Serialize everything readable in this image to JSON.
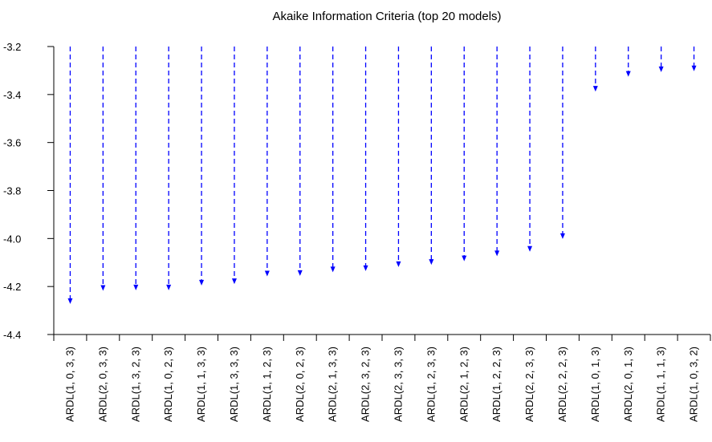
{
  "chart_data": {
    "type": "lollipop-arrow",
    "title": "Akaike Information Criteria (top 20 models)",
    "xlabel": "",
    "ylabel": "",
    "ylim": [
      -4.4,
      -3.2
    ],
    "yticks": [
      -3.2,
      -3.4,
      -3.6,
      -3.8,
      -4.0,
      -4.2,
      -4.4
    ],
    "ytick_labels": [
      "-3.2",
      "-3.4",
      "-3.6",
      "-3.8",
      "-4.0",
      "-4.2",
      "-4.4"
    ],
    "grid": false,
    "legend": "none",
    "series_color": "#0000ff",
    "categories": [
      "ARDL(1, 0, 3, 3)",
      "ARDL(2, 0, 3, 3)",
      "ARDL(1, 3, 2, 3)",
      "ARDL(1, 0, 2, 3)",
      "ARDL(1, 1, 3, 3)",
      "ARDL(1, 3, 3, 3)",
      "ARDL(1, 1, 2, 3)",
      "ARDL(2, 0, 2, 3)",
      "ARDL(2, 1, 3, 3)",
      "ARDL(2, 3, 2, 3)",
      "ARDL(2, 3, 3, 3)",
      "ARDL(1, 2, 3, 3)",
      "ARDL(2, 1, 2, 3)",
      "ARDL(1, 2, 2, 3)",
      "ARDL(2, 2, 3, 3)",
      "ARDL(2, 2, 2, 3)",
      "ARDL(1, 0, 1, 3)",
      "ARDL(2, 0, 1, 3)",
      "ARDL(1, 1, 1, 3)",
      "ARDL(1, 0, 3, 2)"
    ],
    "values": [
      -4.266,
      -4.211,
      -4.209,
      -4.209,
      -4.189,
      -4.183,
      -4.151,
      -4.149,
      -4.134,
      -4.129,
      -4.112,
      -4.103,
      -4.088,
      -4.067,
      -4.048,
      -3.995,
      -3.381,
      -3.319,
      -3.3,
      -3.296
    ]
  }
}
